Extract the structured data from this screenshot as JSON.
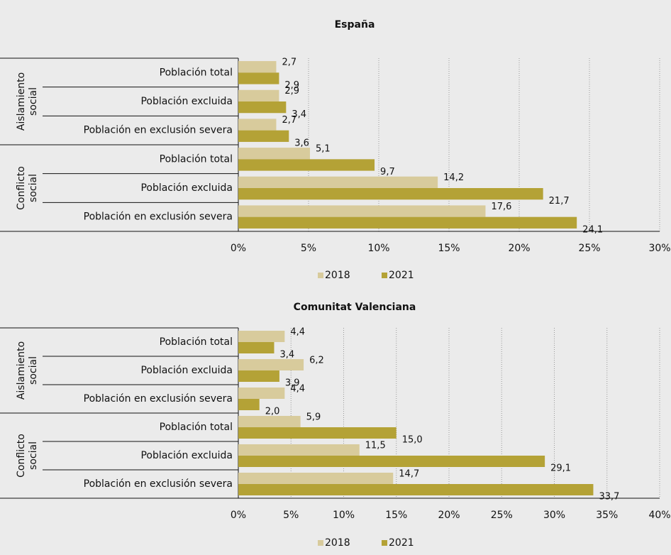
{
  "chart_data": [
    {
      "type": "bar",
      "orientation": "horizontal",
      "title": "España",
      "groups": [
        {
          "label": [
            "Aislamiento",
            "social"
          ],
          "categories": [
            "Población total",
            "Población excluida",
            "Población en exclusión severa"
          ]
        },
        {
          "label": [
            "Conflicto",
            "social"
          ],
          "categories": [
            "Población total",
            "Población excluida",
            "Población en exclusión severa"
          ]
        }
      ],
      "series": [
        {
          "name": "2018",
          "color": "#d8cb9c",
          "values": [
            2.7,
            2.9,
            2.7,
            5.1,
            14.2,
            17.6
          ],
          "value_labels": [
            "2,7",
            "2,9",
            "2,7",
            "5,1",
            "14,2",
            "17,6"
          ]
        },
        {
          "name": "2021",
          "color": "#b4a236",
          "values": [
            2.9,
            3.4,
            3.6,
            9.7,
            21.7,
            24.1
          ],
          "value_labels": [
            "2,9",
            "3,4",
            "3,6",
            "9,7",
            "21,7",
            "24,1"
          ]
        }
      ],
      "xlim": [
        0,
        30
      ],
      "xticks": [
        {
          "value": 0,
          "label": "0%"
        },
        {
          "value": 5,
          "label": "5%"
        },
        {
          "value": 10,
          "label": "10%"
        },
        {
          "value": 15,
          "label": "15%"
        },
        {
          "value": 20,
          "label": "20%"
        },
        {
          "value": 25,
          "label": "25%"
        },
        {
          "value": 30,
          "label": "30%"
        }
      ],
      "grid": true,
      "legend": "bottom"
    },
    {
      "type": "bar",
      "orientation": "horizontal",
      "title": "Comunitat Valenciana",
      "groups": [
        {
          "label": [
            "Aislamiento",
            "social"
          ],
          "categories": [
            "Población total",
            "Población excluida",
            "Población en exclusión severa"
          ]
        },
        {
          "label": [
            "Conflicto",
            "social"
          ],
          "categories": [
            "Población total",
            "Población excluida",
            "Población en exclusión severa"
          ]
        }
      ],
      "series": [
        {
          "name": "2018",
          "color": "#d8cb9c",
          "values": [
            4.4,
            6.2,
            4.4,
            5.9,
            11.5,
            14.7
          ],
          "value_labels": [
            "4,4",
            "6,2",
            "4,4",
            "5,9",
            "11,5",
            "14,7"
          ]
        },
        {
          "name": "2021",
          "color": "#b4a236",
          "values": [
            3.4,
            3.9,
            2.0,
            15.0,
            29.1,
            33.7
          ],
          "value_labels": [
            "3,4",
            "3,9",
            "2,0",
            "15,0",
            "29,1",
            "33,7"
          ]
        }
      ],
      "xlim": [
        0,
        40
      ],
      "xticks": [
        {
          "value": 0,
          "label": "0%"
        },
        {
          "value": 5,
          "label": "5%"
        },
        {
          "value": 10,
          "label": "10%"
        },
        {
          "value": 15,
          "label": "15%"
        },
        {
          "value": 20,
          "label": "20%"
        },
        {
          "value": 25,
          "label": "25%"
        },
        {
          "value": 30,
          "label": "30%"
        },
        {
          "value": 35,
          "label": "35%"
        },
        {
          "value": 40,
          "label": "40%"
        }
      ],
      "grid": true,
      "legend": "bottom"
    }
  ]
}
